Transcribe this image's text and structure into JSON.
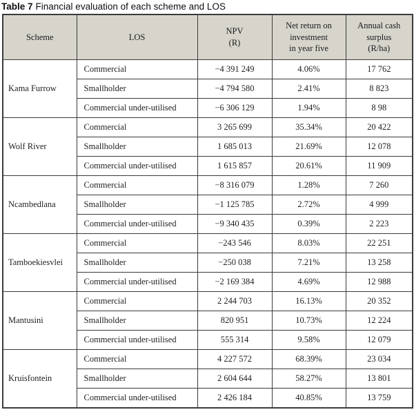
{
  "title": {
    "prefix": "Table 7",
    "text": "Financial evaluation of each scheme and LOS"
  },
  "colors": {
    "header_bg": "#d7d4cc",
    "border": "#3a3a3a",
    "page_bg": "#ffffff"
  },
  "table": {
    "headers": {
      "scheme": "Scheme",
      "los": "LOS",
      "npv": "NPV\n(R)",
      "net_return": "Net return on\ninvestment\nin year five",
      "cash_surplus": "Annual cash\nsurplus\n(R/ha)"
    },
    "groups": [
      {
        "scheme": "Kama Furrow",
        "rows": [
          {
            "los": "Commercial",
            "npv": "−4 391 249",
            "net_return": "4.06%",
            "cash_surplus": "17 762"
          },
          {
            "los": "Smallholder",
            "npv": "−4 794 580",
            "net_return": "2.41%",
            "cash_surplus": "8 823"
          },
          {
            "los": "Commercial under-utilised",
            "npv": "−6 306 129",
            "net_return": "1.94%",
            "cash_surplus": "8 98"
          }
        ]
      },
      {
        "scheme": "Wolf River",
        "rows": [
          {
            "los": "Commercial",
            "npv": "3 265 699",
            "net_return": "35.34%",
            "cash_surplus": "20 422"
          },
          {
            "los": "Smallholder",
            "npv": "1 685 013",
            "net_return": "21.69%",
            "cash_surplus": "12 078"
          },
          {
            "los": "Commercial under-utilised",
            "npv": "1 615 857",
            "net_return": "20.61%",
            "cash_surplus": "11 909"
          }
        ]
      },
      {
        "scheme": "Ncambedlana",
        "rows": [
          {
            "los": "Commercial",
            "npv": "−8 316 079",
            "net_return": "1.28%",
            "cash_surplus": "7 260"
          },
          {
            "los": "Smallholder",
            "npv": "−1 125 785",
            "net_return": "2.72%",
            "cash_surplus": "4 999"
          },
          {
            "los": "Commercial under-utilised",
            "npv": "−9 340 435",
            "net_return": "0.39%",
            "cash_surplus": "2 223"
          }
        ]
      },
      {
        "scheme": "Tamboekiesvlei",
        "rows": [
          {
            "los": "Commercial",
            "npv": "−243 546",
            "net_return": "8.03%",
            "cash_surplus": "22 251"
          },
          {
            "los": "Smallholder",
            "npv": "−250 038",
            "net_return": "7.21%",
            "cash_surplus": "13 258"
          },
          {
            "los": "Commercial under-utilised",
            "npv": "−2 169 384",
            "net_return": "4.69%",
            "cash_surplus": "12 988"
          }
        ]
      },
      {
        "scheme": "Mantusini",
        "rows": [
          {
            "los": "Commercial",
            "npv": "2 244 703",
            "net_return": "16.13%",
            "cash_surplus": "20 352"
          },
          {
            "los": "Smallholder",
            "npv": "820 951",
            "net_return": "10.73%",
            "cash_surplus": "12 224"
          },
          {
            "los": "Commercial under-utilised",
            "npv": "555 314",
            "net_return": "9.58%",
            "cash_surplus": "12 079"
          }
        ]
      },
      {
        "scheme": "Kruisfontein",
        "rows": [
          {
            "los": "Commercial",
            "npv": "4 227 572",
            "net_return": "68.39%",
            "cash_surplus": "23 034"
          },
          {
            "los": "Smallholder",
            "npv": "2 604 644",
            "net_return": "58.27%",
            "cash_surplus": "13 801"
          },
          {
            "los": "Commercial under-utilised",
            "npv": "2 426 184",
            "net_return": "40.85%",
            "cash_surplus": "13 759"
          }
        ]
      }
    ]
  }
}
